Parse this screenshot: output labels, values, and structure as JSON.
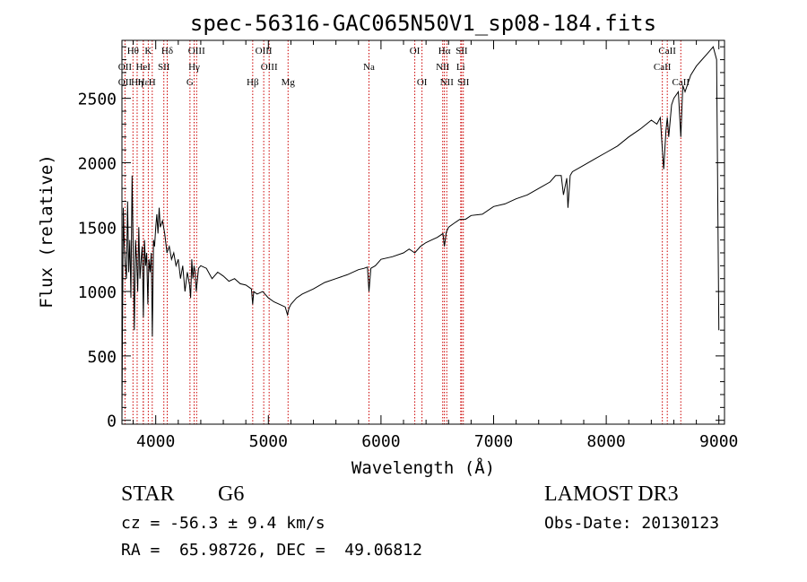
{
  "chart_data": {
    "type": "line",
    "title": "spec-56316-GAC065N50V1_sp08-184.fits",
    "xlabel": "Wavelength (Å)",
    "ylabel": "Flux (relative)",
    "xlim": [
      3700,
      9050
    ],
    "ylim": [
      -30,
      2950
    ],
    "xticks": [
      4000,
      5000,
      6000,
      7000,
      8000,
      9000
    ],
    "yticks": [
      0,
      500,
      1000,
      1500,
      2000,
      2500
    ],
    "grid": false,
    "series": [
      {
        "name": "spectrum",
        "x": [
          3700,
          3705,
          3712,
          3720,
          3730,
          3740,
          3750,
          3760,
          3770,
          3780,
          3790,
          3800,
          3810,
          3820,
          3830,
          3840,
          3850,
          3860,
          3870,
          3880,
          3890,
          3900,
          3910,
          3920,
          3930,
          3940,
          3950,
          3960,
          3970,
          3980,
          3990,
          4000,
          4010,
          4020,
          4030,
          4040,
          4060,
          4080,
          4100,
          4120,
          4140,
          4160,
          4180,
          4200,
          4220,
          4240,
          4260,
          4280,
          4300,
          4310,
          4320,
          4330,
          4340,
          4350,
          4360,
          4380,
          4400,
          4450,
          4500,
          4550,
          4600,
          4650,
          4700,
          4750,
          4800,
          4850,
          4861,
          4870,
          4900,
          4950,
          5000,
          5050,
          5100,
          5150,
          5170,
          5183,
          5200,
          5250,
          5300,
          5400,
          5500,
          5600,
          5700,
          5800,
          5850,
          5880,
          5893,
          5910,
          5950,
          6000,
          6100,
          6200,
          6250,
          6300,
          6350,
          6400,
          6450,
          6500,
          6550,
          6563,
          6580,
          6600,
          6650,
          6700,
          6750,
          6800,
          6900,
          7000,
          7100,
          7200,
          7300,
          7400,
          7500,
          7550,
          7600,
          7620,
          7650,
          7660,
          7680,
          7700,
          7800,
          7900,
          8000,
          8100,
          8200,
          8300,
          8400,
          8450,
          8480,
          8498,
          8510,
          8530,
          8542,
          8555,
          8580,
          8600,
          8640,
          8662,
          8680,
          8700,
          8750,
          8800,
          8850,
          8900,
          8950,
          8980,
          9000
        ],
        "y": [
          0,
          700,
          1650,
          1380,
          1200,
          1100,
          1700,
          1150,
          1400,
          950,
          1900,
          1300,
          700,
          1400,
          1250,
          1000,
          1500,
          1100,
          1250,
          1350,
          800,
          1400,
          1200,
          1300,
          900,
          1250,
          1150,
          1300,
          650,
          1400,
          1350,
          1500,
          1600,
          1450,
          1650,
          1500,
          1550,
          1450,
          1300,
          1350,
          1250,
          1300,
          1200,
          1250,
          1100,
          1200,
          1000,
          1150,
          1050,
          950,
          1250,
          1100,
          1200,
          1150,
          1000,
          1180,
          1200,
          1180,
          1100,
          1150,
          1120,
          1080,
          1100,
          1060,
          1050,
          1020,
          900,
          1000,
          980,
          1000,
          950,
          920,
          900,
          880,
          820,
          870,
          900,
          950,
          980,
          1020,
          1070,
          1100,
          1130,
          1170,
          1180,
          1190,
          1000,
          1180,
          1200,
          1250,
          1270,
          1300,
          1330,
          1300,
          1350,
          1380,
          1400,
          1420,
          1450,
          1350,
          1460,
          1500,
          1530,
          1560,
          1560,
          1590,
          1600,
          1660,
          1680,
          1720,
          1750,
          1800,
          1850,
          1900,
          1900,
          1750,
          1880,
          1650,
          1900,
          1930,
          1980,
          2030,
          2080,
          2130,
          2200,
          2260,
          2330,
          2300,
          2350,
          2100,
          1950,
          2250,
          2350,
          2200,
          2450,
          2500,
          2550,
          2200,
          2600,
          2550,
          2680,
          2750,
          2800,
          2850,
          2900,
          2800,
          700
        ]
      }
    ],
    "line_markers": [
      {
        "label": "Hθ",
        "x": 3798,
        "row": 0
      },
      {
        "label": "OII",
        "x": 3727,
        "row": 1
      },
      {
        "label": "OII",
        "x": 3727,
        "row": 2
      },
      {
        "label": "Hε",
        "x": 3890,
        "row": 2
      },
      {
        "label": "Hη",
        "x": 3835,
        "row": 2
      },
      {
        "label": "HeI",
        "x": 3889,
        "row": 1
      },
      {
        "label": "K",
        "x": 3934,
        "row": 0
      },
      {
        "label": "H",
        "x": 3969,
        "row": 2
      },
      {
        "label": "SII",
        "x": 4072,
        "row": 1
      },
      {
        "label": "Hδ",
        "x": 4102,
        "row": 0
      },
      {
        "label": "OIII",
        "x": 4363,
        "row": 0
      },
      {
        "label": "Hγ",
        "x": 4341,
        "row": 1
      },
      {
        "label": "G",
        "x": 4304,
        "row": 2
      },
      {
        "label": "Hβ",
        "x": 4861,
        "row": 2
      },
      {
        "label": "OIII",
        "x": 4959,
        "row": 0
      },
      {
        "label": "OIII",
        "x": 5007,
        "row": 1
      },
      {
        "label": "Mg",
        "x": 5175,
        "row": 2
      },
      {
        "label": "Na",
        "x": 5893,
        "row": 1
      },
      {
        "label": "OI",
        "x": 6300,
        "row": 0
      },
      {
        "label": "OI",
        "x": 6364,
        "row": 2
      },
      {
        "label": "Hα",
        "x": 6563,
        "row": 0
      },
      {
        "label": "NII",
        "x": 6548,
        "row": 1
      },
      {
        "label": "NII",
        "x": 6584,
        "row": 2
      },
      {
        "label": "SII",
        "x": 6716,
        "row": 0
      },
      {
        "label": "SII",
        "x": 6731,
        "row": 2
      },
      {
        "label": "Li",
        "x": 6708,
        "row": 1
      },
      {
        "label": "CaII",
        "x": 8542,
        "row": 0
      },
      {
        "label": "CaII",
        "x": 8498,
        "row": 1
      },
      {
        "label": "CaII",
        "x": 8662,
        "row": 2
      }
    ]
  },
  "info": {
    "object_class": "STAR",
    "subclass": "G6",
    "survey": "LAMOST DR3",
    "cz": "cz = -56.3 ± 9.4 km/s",
    "obs_date": "Obs-Date: 20130123",
    "coords": "RA =  65.98726, DEC =  49.06812"
  },
  "colors": {
    "line": "#000000",
    "marker": "#cc0000",
    "axis": "#000000"
  }
}
